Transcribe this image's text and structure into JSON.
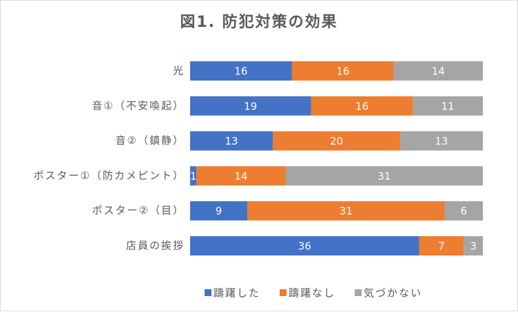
{
  "chart_data": {
    "type": "stacked_bar_horizontal",
    "title": "図1. 防犯対策の効果",
    "categories": [
      "光",
      "音①（不安喚起）",
      "音②（鎮静）",
      "ポスター①（防カメピント）",
      "ポスター②（目）",
      "店員の挨拶"
    ],
    "series": [
      {
        "name": "躊躇した",
        "color": "#4472c4",
        "values": [
          16,
          19,
          13,
          1,
          9,
          36
        ]
      },
      {
        "name": "躊躇なし",
        "color": "#ed7d31",
        "values": [
          16,
          16,
          20,
          14,
          31,
          7
        ]
      },
      {
        "name": "気づかない",
        "color": "#a5a5a5",
        "values": [
          14,
          11,
          13,
          31,
          6,
          3
        ]
      }
    ],
    "legend": "bottom"
  }
}
